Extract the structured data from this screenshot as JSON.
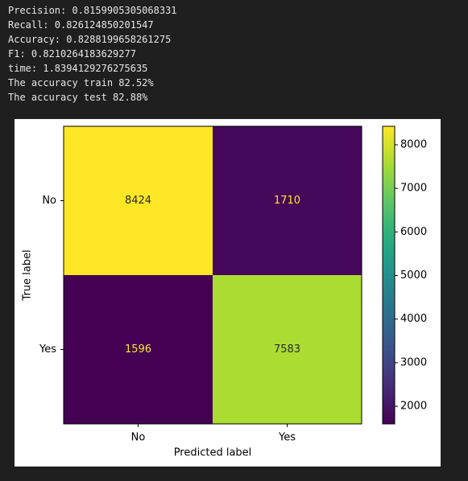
{
  "output_lines": [
    "Precision: 0.8159905305068331",
    "Recall: 0.826124850201547",
    "Accuracy: 0.8288199658261275",
    "F1: 0.8210264183629277",
    "time: 1.8394129276275635",
    "The accuracy train 82.52%",
    "The accuracy test 82.88%"
  ],
  "chart_data": {
    "type": "heatmap",
    "title": "",
    "xlabel": "Predicted label",
    "ylabel": "True label",
    "x_categories": [
      "No",
      "Yes"
    ],
    "y_categories": [
      "No",
      "Yes"
    ],
    "values": [
      [
        8424,
        1710
      ],
      [
        1596,
        7583
      ]
    ],
    "colormap": "viridis",
    "colorbar": {
      "min": 1596,
      "max": 8424,
      "ticks": [
        2000,
        3000,
        4000,
        5000,
        6000,
        7000,
        8000
      ]
    },
    "text_color_dark": "#2b2b2b",
    "text_color_light": "#fde725"
  }
}
